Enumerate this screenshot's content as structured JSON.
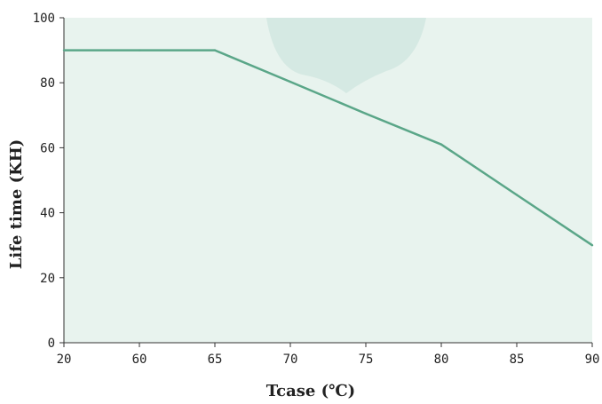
{
  "chart_data": {
    "type": "line",
    "title": "",
    "xlabel": "Tcase (℃)",
    "ylabel": "Life time (KH)",
    "x": [
      "20",
      "60",
      "65",
      "70",
      "75",
      "80",
      "85",
      "90"
    ],
    "series": [
      {
        "values": [
          90,
          90,
          90,
          80.3,
          70.5,
          61,
          45.5,
          30
        ]
      }
    ],
    "yticks": [
      "0",
      "20",
      "40",
      "60",
      "80",
      "100"
    ],
    "ylim": [
      0,
      100
    ],
    "grid": false,
    "colors": {
      "line": "#5aa688",
      "plot_background": "#e8f3ee",
      "watermark": "#cfe6df",
      "axis": "#333333"
    }
  }
}
